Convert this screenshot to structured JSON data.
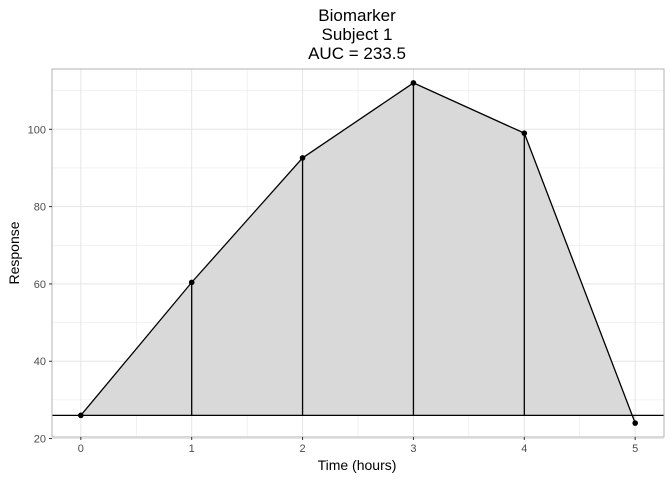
{
  "chart_data": {
    "type": "area",
    "title_lines": [
      "Biomarker",
      "Subject 1",
      "AUC = 233.5"
    ],
    "xlabel": "Time (hours)",
    "ylabel": "Response",
    "x": [
      0,
      1,
      2,
      3,
      4,
      5
    ],
    "y": [
      26,
      60.4,
      92.6,
      112,
      99,
      24
    ],
    "baseline": 26,
    "xlim": [
      -0.26,
      5.26
    ],
    "ylim": [
      20.4,
      115.6
    ],
    "xticks": [
      0,
      1,
      2,
      3,
      4,
      5
    ],
    "yticks": [
      20,
      40,
      60,
      80,
      100
    ],
    "grid": true,
    "fill_color": "#d9d9d9",
    "line_color": "#000000",
    "grid_color": "#e5e5e5",
    "panel_border_color": "#b3b3b3"
  }
}
